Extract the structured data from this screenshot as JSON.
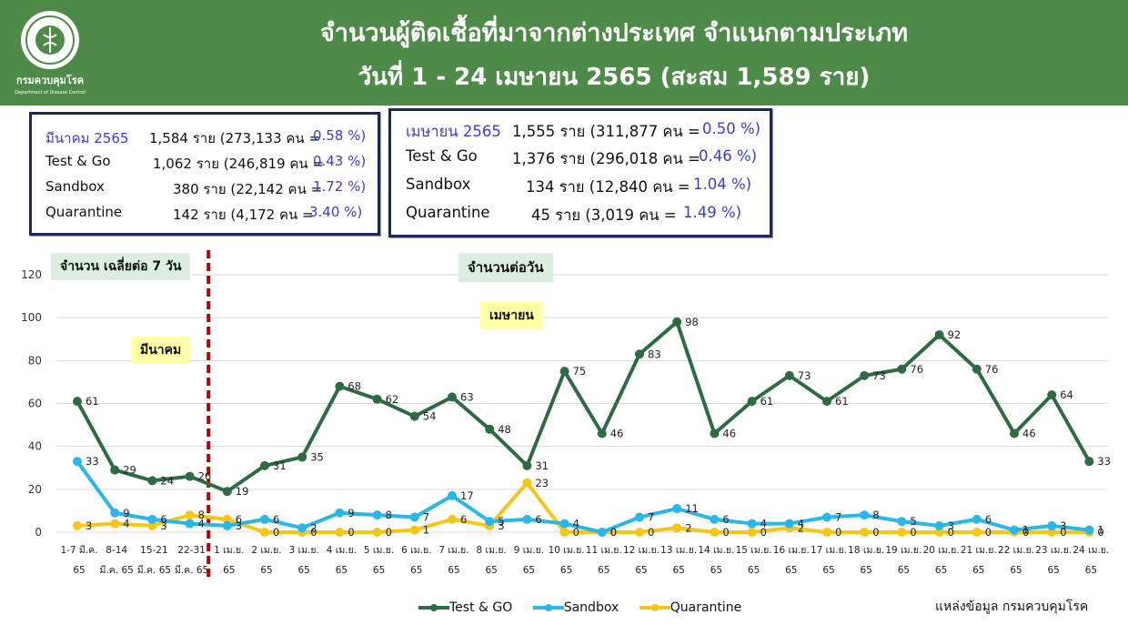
{
  "header": {
    "title_line1": "จำนวนผู้ติดเชื้อที่มาจากต่างประเทศ จำแนกตามประเภท",
    "title_line2": "วันที่  1 - 24 เมษายน  2565 (สะสม 1,589 ราย)",
    "logo_text": "กรมควบคุมโรค",
    "logo_subtext": "Department of Disease Control"
  },
  "march_box": {
    "rows": [
      {
        "label": "มีนาคม 2565",
        "count": "1,584 ราย (273,133 คน = ",
        "pct": "0.58 %)"
      },
      {
        "label": "Test & Go",
        "count": "1,062 ราย (246,819 คน = ",
        "pct": "0.43 %)"
      },
      {
        "label": "Sandbox",
        "count": "380 ราย (22,142 คน  = ",
        "pct": "1.72 %)"
      },
      {
        "label": "Quarantine",
        "count": "142 ราย (4,172 คน  = ",
        "pct": "3.40 %)"
      }
    ]
  },
  "april_box": {
    "rows": [
      {
        "label": "เมษายน 2565",
        "count": "1,555 ราย (311,877 คน  = ",
        "pct": "0.50 %)"
      },
      {
        "label": "Test & Go",
        "count": "1,376 ราย (296,018 คน = ",
        "pct": "0.46 %)"
      },
      {
        "label": "Sandbox",
        "count": "134 ราย (12,840 คน  = ",
        "pct": "1.04 %)"
      },
      {
        "label": "Quarantine",
        "count": "45 ราย (3,019 คน  = ",
        "pct": "1.49 %)"
      }
    ]
  },
  "annotations": {
    "avg_label": "จำนวน เฉลี่ยต่อ 7 วัน",
    "daily_label": "จำนวนต่อวัน",
    "april_label": "เมษายน",
    "march_label": "มีนาคม"
  },
  "source": "แหล่งข้อมูล กรมควบคุมโรค",
  "colors": {
    "header": "#4e8a48",
    "test_go": "#2e6b42",
    "sandbox": "#29b6e8",
    "quarantine": "#f5c518",
    "divider": "#c00000"
  },
  "chart_data": {
    "type": "line",
    "ylim": [
      0,
      120
    ],
    "yticks": [
      0,
      20,
      40,
      60,
      80,
      100,
      120
    ],
    "grid": true,
    "legend_position": "bottom",
    "categories": [
      [
        "1-7 มี.ค.",
        "65"
      ],
      [
        "8-14",
        "มี.ค. 65"
      ],
      [
        "15-21",
        "มี.ค. 65"
      ],
      [
        "22-31",
        "มี.ค. 65"
      ],
      [
        "1 เม.ย.",
        "65"
      ],
      [
        "2 เม.ย.",
        "65"
      ],
      [
        "3 เม.ย.",
        "65"
      ],
      [
        "4 เม.ย.",
        "65"
      ],
      [
        "5 เม.ย.",
        "65"
      ],
      [
        "6 เม.ย.",
        "65"
      ],
      [
        "7 เม.ย.",
        "65"
      ],
      [
        "8 เม.ย.",
        "65"
      ],
      [
        "9 เม.ย.",
        "65"
      ],
      [
        "10 เม.ย.",
        "65"
      ],
      [
        "11 เม.ย.",
        "65"
      ],
      [
        "12 เม.ย.",
        "65"
      ],
      [
        "13 เม.ย.",
        "65"
      ],
      [
        "14 เม.ย.",
        "65"
      ],
      [
        "15 เม.ย.",
        "65"
      ],
      [
        "16 เม.ย.",
        "65"
      ],
      [
        "17 เม.ย.",
        "65"
      ],
      [
        "18 เม.ย.",
        "65"
      ],
      [
        "19 เม.ย.",
        "65"
      ],
      [
        "20 เม.ย.",
        "65"
      ],
      [
        "21 เม.ย.",
        "65"
      ],
      [
        "22 เม.ย.",
        "65"
      ],
      [
        "23 เม.ย.",
        "65"
      ],
      [
        "24 เม.ย.",
        "65"
      ]
    ],
    "series": [
      {
        "name": "Test & GO",
        "values": [
          61,
          29,
          24,
          26,
          19,
          31,
          35,
          68,
          62,
          54,
          63,
          48,
          31,
          75,
          46,
          83,
          98,
          46,
          61,
          73,
          61,
          73,
          76,
          92,
          76,
          46,
          64,
          33
        ]
      },
      {
        "name": "Sandbox",
        "values": [
          33,
          9,
          6,
          4,
          3,
          6,
          2,
          9,
          8,
          7,
          17,
          5,
          6,
          4,
          0,
          7,
          11,
          6,
          4,
          4,
          7,
          8,
          5,
          3,
          6,
          1,
          3,
          1
        ]
      },
      {
        "name": "Quarantine",
        "values": [
          3,
          4,
          3,
          8,
          6,
          0,
          0,
          0,
          0,
          1,
          6,
          3,
          23,
          0,
          0,
          0,
          2,
          0,
          0,
          2,
          0,
          0,
          0,
          0,
          0,
          0,
          0,
          0
        ]
      }
    ]
  }
}
